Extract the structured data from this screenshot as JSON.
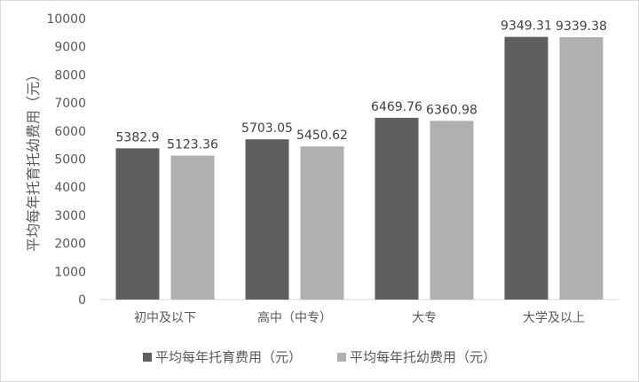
{
  "chart_data": {
    "type": "bar",
    "title": "",
    "xlabel": "",
    "ylabel": "平均每年托育托幼费用（元）",
    "ylim": [
      0,
      10000
    ],
    "yticks": [
      0,
      1000,
      2000,
      3000,
      4000,
      5000,
      6000,
      7000,
      8000,
      9000,
      10000
    ],
    "grid": false,
    "legend_position": "bottom",
    "categories": [
      "初中及以下",
      "高中（中专）",
      "大专",
      "大学及以上"
    ],
    "series": [
      {
        "name": "平均每年托育费用（元）",
        "values": [
          5382.9,
          5703.05,
          6469.76,
          9349.31
        ],
        "labels": [
          "5382.9",
          "5703.05",
          "6469.76",
          "9349.31"
        ],
        "color": "#5f5f5f"
      },
      {
        "name": "平均每年托幼费用（元）",
        "values": [
          5123.36,
          5450.62,
          6360.98,
          9339.38
        ],
        "labels": [
          "5123.36",
          "5450.62",
          "6360.98",
          "9339.38"
        ],
        "color": "#b0b0b0"
      }
    ]
  }
}
